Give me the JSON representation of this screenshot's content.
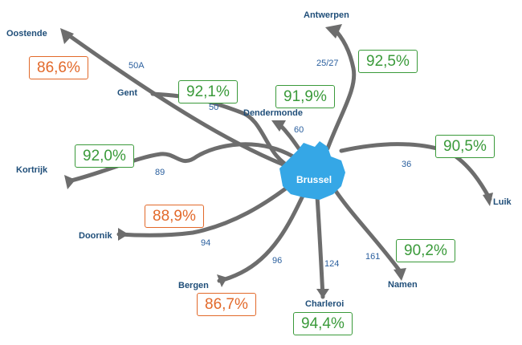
{
  "colors": {
    "route": "#6d6d6d",
    "hub": "#35a7e6",
    "good": "#3a9a3a",
    "bad": "#e2692a",
    "city_text": "#1f4e79",
    "route_text": "#2a5f9e"
  },
  "center": {
    "name": "Brussel"
  },
  "routes": [
    {
      "city": "Oostende",
      "route": "50A",
      "pct": "86,6%",
      "status": "bad"
    },
    {
      "city": "Gent",
      "route": "50",
      "pct": "92,1%",
      "status": "good"
    },
    {
      "city": "Antwerpen",
      "route": "25/27",
      "pct": "92,5%",
      "status": "good"
    },
    {
      "city": "Dendermonde",
      "route": "60",
      "pct": "91,9%",
      "status": "good"
    },
    {
      "city": "Kortrijk",
      "route": "89",
      "pct": "92,0%",
      "status": "good"
    },
    {
      "city": "Luik",
      "route": "36",
      "pct": "90,5%",
      "status": "good"
    },
    {
      "city": "Doornik",
      "route": "94",
      "pct": "88,9%",
      "status": "bad"
    },
    {
      "city": "Bergen",
      "route": "96",
      "pct": "86,7%",
      "status": "bad"
    },
    {
      "city": "Charleroi",
      "route": "124",
      "pct": "94,4%",
      "status": "good"
    },
    {
      "city": "Namen",
      "route": "161",
      "pct": "90,2%",
      "status": "good"
    }
  ]
}
